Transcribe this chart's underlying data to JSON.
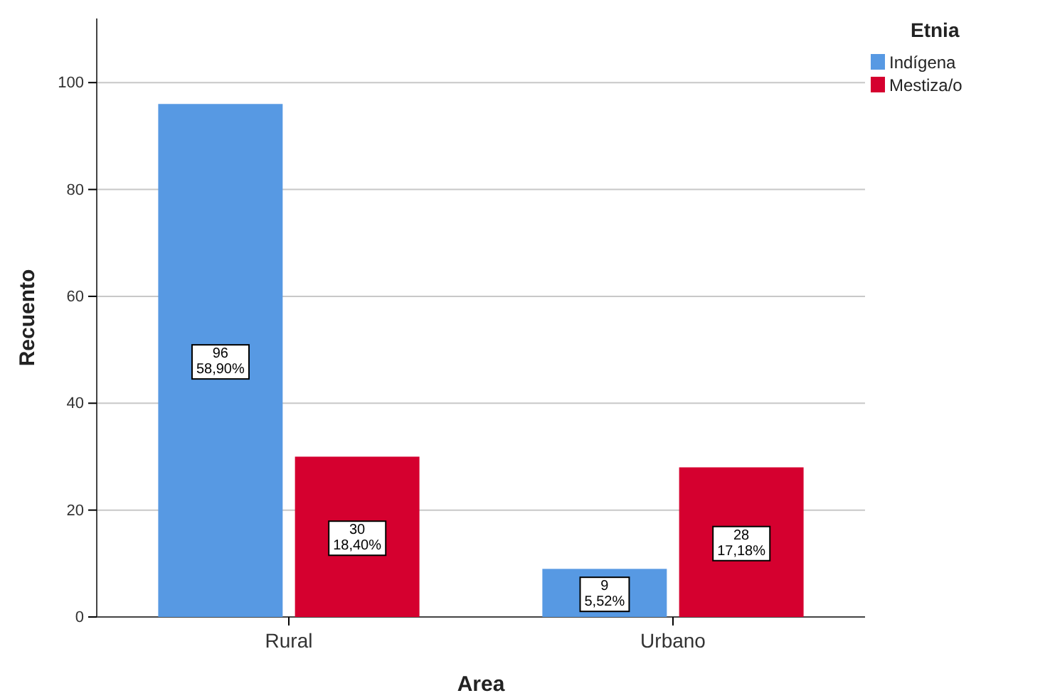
{
  "chart_data": {
    "type": "bar",
    "xlabel": "Area",
    "ylabel": "Recuento",
    "legend_title": "Etnia",
    "categories": [
      "Rural",
      "Urbano"
    ],
    "series": [
      {
        "name": "Indígena",
        "color": "#5799e3",
        "values": [
          96,
          9
        ],
        "value_labels": [
          "96\n58,90%",
          "9\n5,52%"
        ]
      },
      {
        "name": "Mestiza/o",
        "color": "#d5002f",
        "values": [
          30,
          28
        ],
        "value_labels": [
          "30\n18,40%",
          "28\n17,18%"
        ]
      }
    ],
    "ylim": [
      0,
      112
    ],
    "yticks": [
      0,
      20,
      40,
      60,
      80,
      100
    ],
    "grid": "y",
    "legend": "top right"
  }
}
